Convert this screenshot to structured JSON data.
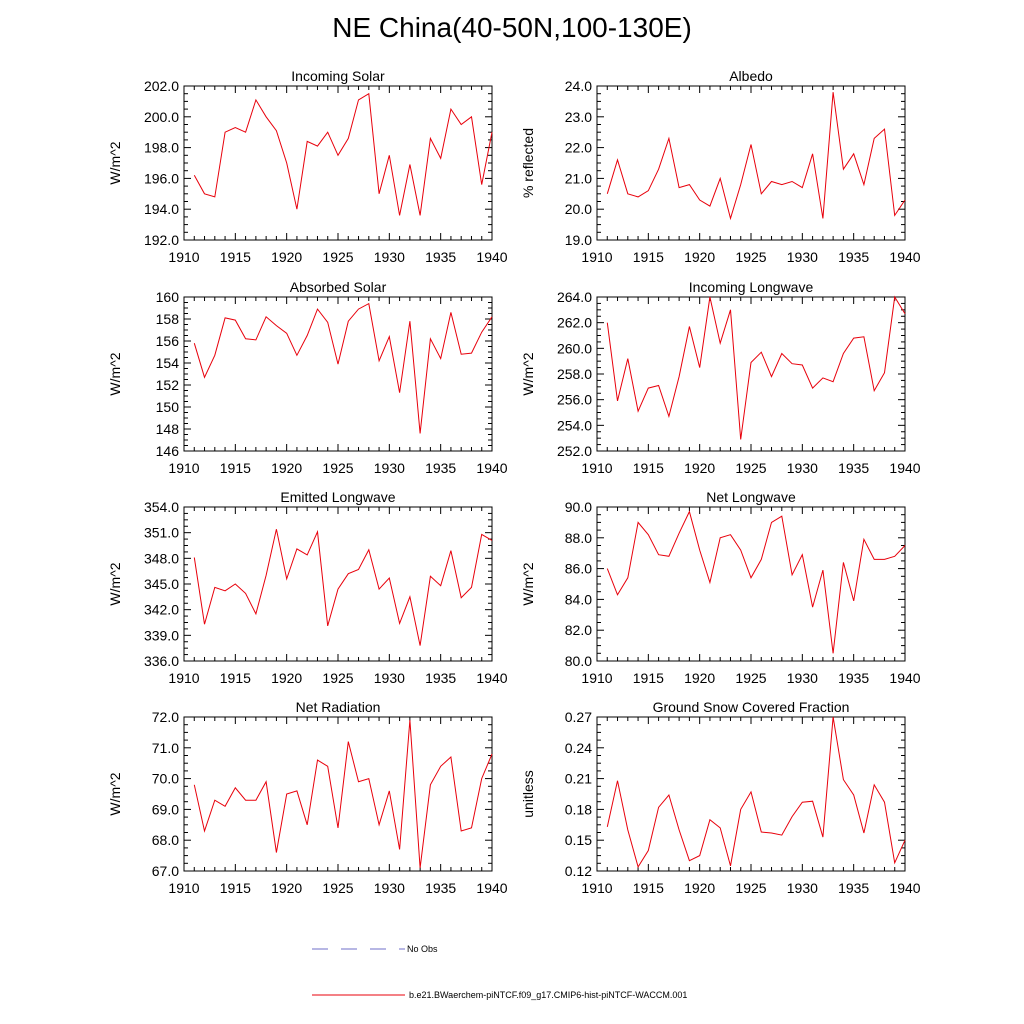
{
  "page": {
    "title": "NE China(40-50N,100-130E)"
  },
  "legend": {
    "entries": [
      {
        "label": "No Obs",
        "color": "#6f6fc8",
        "style": "dashed"
      },
      {
        "label": "b.e21.BWaerchem-piNTCF.f09_g17.CMIP6-hist-piNTCF-WACCM.001",
        "color": "#e8000b",
        "style": "solid"
      }
    ]
  },
  "chart_data": [
    {
      "type": "line",
      "title": "Incoming Solar",
      "ylabel": "W/m^2",
      "xlim": [
        1910,
        1940
      ],
      "ylim": [
        192,
        202
      ],
      "yticks": [
        "192.0",
        "194.0",
        "196.0",
        "198.0",
        "200.0",
        "202.0"
      ],
      "xticks": [
        "1910",
        "1915",
        "1920",
        "1925",
        "1930",
        "1935",
        "1940"
      ],
      "x_start": 1911,
      "series": [
        {
          "color": "#e8000b",
          "values": [
            196.2,
            195.0,
            194.8,
            199.0,
            199.3,
            199.0,
            201.1,
            200.0,
            199.1,
            197.0,
            194.0,
            198.4,
            198.1,
            199.0,
            197.5,
            198.6,
            201.1,
            201.5,
            195.0,
            197.5,
            193.6,
            196.9,
            193.6,
            198.6,
            197.3,
            200.5,
            199.5,
            200.0,
            195.6,
            199.0
          ]
        }
      ]
    },
    {
      "type": "line",
      "title": "Albedo",
      "ylabel": "% reflected",
      "xlim": [
        1910,
        1940
      ],
      "ylim": [
        19,
        24
      ],
      "yticks": [
        "19.0",
        "20.0",
        "21.0",
        "22.0",
        "23.0",
        "24.0"
      ],
      "xticks": [
        "1910",
        "1915",
        "1920",
        "1925",
        "1930",
        "1935",
        "1940"
      ],
      "x_start": 1911,
      "series": [
        {
          "color": "#e8000b",
          "values": [
            20.5,
            21.6,
            20.5,
            20.4,
            20.6,
            21.3,
            22.3,
            20.7,
            20.8,
            20.3,
            20.1,
            21.0,
            19.7,
            20.8,
            22.1,
            20.5,
            20.9,
            20.8,
            20.9,
            20.7,
            21.8,
            19.7,
            23.8,
            21.3,
            21.8,
            20.8,
            22.3,
            22.6,
            19.8,
            20.3
          ]
        }
      ]
    },
    {
      "type": "line",
      "title": "Absorbed Solar",
      "ylabel": "W/m^2",
      "xlim": [
        1910,
        1940
      ],
      "ylim": [
        146,
        160
      ],
      "yticks": [
        "146",
        "148",
        "150",
        "152",
        "154",
        "156",
        "158",
        "160"
      ],
      "xticks": [
        "1910",
        "1915",
        "1920",
        "1925",
        "1930",
        "1935",
        "1940"
      ],
      "x_start": 1911,
      "series": [
        {
          "color": "#e8000b",
          "values": [
            155.8,
            152.7,
            154.7,
            158.1,
            157.9,
            156.2,
            156.1,
            158.2,
            157.4,
            156.7,
            154.7,
            156.5,
            158.9,
            157.7,
            153.9,
            157.8,
            158.9,
            159.4,
            154.2,
            156.4,
            151.3,
            157.8,
            147.6,
            156.2,
            154.4,
            158.6,
            154.8,
            154.9,
            156.8,
            158.2
          ]
        }
      ]
    },
    {
      "type": "line",
      "title": "Incoming Longwave",
      "ylabel": "W/m^2",
      "xlim": [
        1910,
        1940
      ],
      "ylim": [
        252,
        264
      ],
      "yticks": [
        "252.0",
        "254.0",
        "256.0",
        "258.0",
        "260.0",
        "262.0",
        "264.0"
      ],
      "xticks": [
        "1910",
        "1915",
        "1920",
        "1925",
        "1930",
        "1935",
        "1940"
      ],
      "x_start": 1911,
      "series": [
        {
          "color": "#e8000b",
          "values": [
            262.0,
            255.9,
            259.2,
            255.1,
            256.9,
            257.1,
            254.7,
            257.8,
            261.7,
            258.5,
            264.0,
            260.4,
            263.0,
            252.9,
            258.9,
            259.7,
            257.8,
            259.6,
            258.8,
            258.7,
            256.9,
            257.7,
            257.4,
            259.6,
            260.8,
            260.9,
            256.7,
            258.1,
            264.0,
            262.7
          ]
        }
      ]
    },
    {
      "type": "line",
      "title": "Emitted Longwave",
      "ylabel": "W/m^2",
      "xlim": [
        1910,
        1940
      ],
      "ylim": [
        336,
        354
      ],
      "yticks": [
        "336.0",
        "339.0",
        "342.0",
        "345.0",
        "348.0",
        "351.0",
        "354.0"
      ],
      "xticks": [
        "1910",
        "1915",
        "1920",
        "1925",
        "1930",
        "1935",
        "1940"
      ],
      "x_start": 1911,
      "series": [
        {
          "color": "#e8000b",
          "values": [
            348.1,
            340.3,
            344.6,
            344.2,
            345.0,
            343.9,
            341.5,
            346.0,
            351.4,
            345.6,
            349.1,
            348.4,
            351.1,
            340.1,
            344.4,
            346.2,
            346.7,
            349.0,
            344.4,
            345.7,
            340.4,
            343.5,
            337.8,
            345.9,
            344.8,
            348.9,
            343.4,
            344.6,
            350.8,
            350.1
          ]
        }
      ]
    },
    {
      "type": "line",
      "title": "Net Longwave",
      "ylabel": "W/m^2",
      "xlim": [
        1910,
        1940
      ],
      "ylim": [
        80,
        90
      ],
      "yticks": [
        "80.0",
        "82.0",
        "84.0",
        "86.0",
        "88.0",
        "90.0"
      ],
      "xticks": [
        "1910",
        "1915",
        "1920",
        "1925",
        "1930",
        "1935",
        "1940"
      ],
      "x_start": 1911,
      "series": [
        {
          "color": "#e8000b",
          "values": [
            86.0,
            84.3,
            85.4,
            89.0,
            88.2,
            86.9,
            86.8,
            88.3,
            89.7,
            87.2,
            85.1,
            88.0,
            88.2,
            87.2,
            85.4,
            86.6,
            89.0,
            89.4,
            85.6,
            86.9,
            83.5,
            85.9,
            80.5,
            86.4,
            83.9,
            87.9,
            86.6,
            86.6,
            86.8,
            87.5
          ]
        }
      ]
    },
    {
      "type": "line",
      "title": "Net Radiation",
      "ylabel": "W/m^2",
      "xlim": [
        1910,
        1940
      ],
      "ylim": [
        67,
        72
      ],
      "yticks": [
        "67.0",
        "68.0",
        "69.0",
        "70.0",
        "71.0",
        "72.0"
      ],
      "xticks": [
        "1910",
        "1915",
        "1920",
        "1925",
        "1930",
        "1935",
        "1940"
      ],
      "x_start": 1911,
      "series": [
        {
          "color": "#e8000b",
          "values": [
            69.8,
            68.3,
            69.3,
            69.1,
            69.7,
            69.3,
            69.3,
            69.9,
            67.6,
            69.5,
            69.6,
            68.5,
            70.6,
            70.4,
            68.4,
            71.2,
            69.9,
            70.0,
            68.5,
            69.6,
            67.7,
            71.9,
            67.1,
            69.8,
            70.4,
            70.7,
            68.3,
            68.4,
            70.0,
            70.8
          ]
        }
      ]
    },
    {
      "type": "line",
      "title": "Ground Snow Covered Fraction",
      "ylabel": "unitless",
      "xlim": [
        1910,
        1940
      ],
      "ylim": [
        0.12,
        0.27
      ],
      "yticks": [
        "0.12",
        "0.15",
        "0.18",
        "0.21",
        "0.24",
        "0.27"
      ],
      "xticks": [
        "1910",
        "1915",
        "1920",
        "1925",
        "1930",
        "1935",
        "1940"
      ],
      "x_start": 1911,
      "series": [
        {
          "color": "#e8000b",
          "values": [
            0.163,
            0.208,
            0.16,
            0.124,
            0.14,
            0.182,
            0.194,
            0.16,
            0.13,
            0.135,
            0.17,
            0.162,
            0.125,
            0.18,
            0.197,
            0.158,
            0.157,
            0.155,
            0.173,
            0.187,
            0.188,
            0.153,
            0.27,
            0.209,
            0.194,
            0.157,
            0.204,
            0.187,
            0.128,
            0.15
          ]
        }
      ]
    }
  ]
}
